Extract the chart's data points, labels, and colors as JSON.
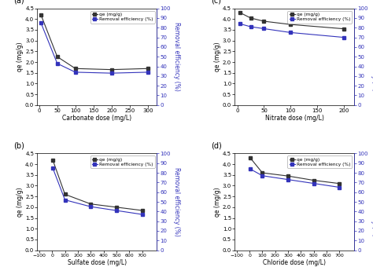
{
  "a": {
    "xlabel": "Carbonate dose (mg/L)",
    "x_qe": [
      5,
      50,
      100,
      200,
      300
    ],
    "qe": [
      4.2,
      2.25,
      1.7,
      1.65,
      1.7
    ],
    "x_re": [
      5,
      50,
      100,
      200,
      300
    ],
    "re": [
      85,
      43,
      34,
      33,
      34
    ],
    "xlim": [
      -5,
      325
    ],
    "xticks": [
      0,
      50,
      100,
      150,
      200,
      250,
      300
    ],
    "ylim_left": [
      0,
      4.5
    ],
    "ylim_right": [
      0,
      100
    ],
    "yticks_left": [
      0.0,
      0.5,
      1.0,
      1.5,
      2.0,
      2.5,
      3.0,
      3.5,
      4.0,
      4.5
    ],
    "yticks_right": [
      0,
      10,
      20,
      30,
      40,
      50,
      60,
      70,
      80,
      90,
      100
    ],
    "label": "(a)"
  },
  "b": {
    "xlabel": "Sulfate dose (mg/L)",
    "x_qe": [
      5,
      100,
      300,
      500,
      700
    ],
    "qe": [
      4.2,
      2.6,
      2.15,
      2.0,
      1.85
    ],
    "x_re": [
      5,
      100,
      300,
      500,
      700
    ],
    "re": [
      85,
      52,
      45,
      41,
      37
    ],
    "xlim": [
      -115,
      815
    ],
    "xticks": [
      -100,
      0,
      100,
      200,
      300,
      400,
      500,
      600,
      700
    ],
    "ylim_left": [
      0,
      4.5
    ],
    "ylim_right": [
      0,
      100
    ],
    "yticks_left": [
      0.0,
      0.5,
      1.0,
      1.5,
      2.0,
      2.5,
      3.0,
      3.5,
      4.0,
      4.5
    ],
    "yticks_right": [
      0,
      10,
      20,
      30,
      40,
      50,
      60,
      70,
      80,
      90,
      100
    ],
    "label": "(b)"
  },
  "c": {
    "xlabel": "Nitrate dose (mg/L)",
    "x_qe": [
      5,
      25,
      50,
      100,
      200
    ],
    "qe": [
      4.3,
      4.05,
      3.9,
      3.75,
      3.55
    ],
    "x_re": [
      5,
      25,
      50,
      100,
      200
    ],
    "re": [
      84,
      81,
      79,
      75,
      70
    ],
    "xlim": [
      -5,
      220
    ],
    "xticks": [
      0,
      50,
      100,
      150,
      200
    ],
    "ylim_left": [
      0,
      4.5
    ],
    "ylim_right": [
      0,
      100
    ],
    "yticks_left": [
      0.0,
      0.5,
      1.0,
      1.5,
      2.0,
      2.5,
      3.0,
      3.5,
      4.0,
      4.5
    ],
    "yticks_right": [
      0,
      10,
      20,
      30,
      40,
      50,
      60,
      70,
      80,
      90,
      100
    ],
    "label": "(c)"
  },
  "d": {
    "xlabel": "Chloride dose (mg/L)",
    "x_qe": [
      5,
      100,
      300,
      500,
      700
    ],
    "qe": [
      4.3,
      3.6,
      3.45,
      3.25,
      3.1
    ],
    "x_re": [
      5,
      100,
      300,
      500,
      700
    ],
    "re": [
      84,
      77,
      73,
      69,
      65
    ],
    "xlim": [
      -115,
      815
    ],
    "xticks": [
      -100,
      0,
      100,
      200,
      300,
      400,
      500,
      600,
      700
    ],
    "ylim_left": [
      0,
      4.5
    ],
    "ylim_right": [
      0,
      100
    ],
    "yticks_left": [
      0.0,
      0.5,
      1.0,
      1.5,
      2.0,
      2.5,
      3.0,
      3.5,
      4.0,
      4.5
    ],
    "yticks_right": [
      0,
      10,
      20,
      30,
      40,
      50,
      60,
      70,
      80,
      90,
      100
    ],
    "label": "(d)"
  },
  "ylabel_left": "qe (mg/g)",
  "ylabel_right": "Removal efficiency (%)",
  "color_qe": "#333333",
  "color_re": "#3333bb",
  "legend_qe": "qe (mg/g)",
  "legend_re": "Removal efficiency (%)",
  "bg_color": "#ffffff",
  "marker_qe": "s",
  "marker_re": "s",
  "markersize": 3.5,
  "linewidth": 0.8,
  "fontsize_label": 5.5,
  "fontsize_tick": 5,
  "fontsize_legend": 4.2,
  "fontsize_panel": 7
}
